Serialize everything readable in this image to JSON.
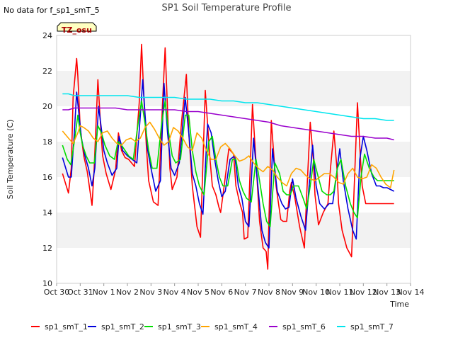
{
  "note": "No data for f_sp1_smT_5",
  "badge": "TZ_osu",
  "chart_data": {
    "type": "line",
    "title": "SP1 Soil Temperature Profile",
    "xlabel": "Time",
    "ylabel": "Soil Temperature (C)",
    "xlim": [
      0,
      15
    ],
    "ylim": [
      10,
      24
    ],
    "yticks": [
      10,
      12,
      14,
      16,
      18,
      20,
      22,
      24
    ],
    "xtick_values": [
      0,
      1,
      2,
      3,
      4,
      5,
      6,
      7,
      8,
      9,
      10,
      11,
      12,
      13,
      14,
      15
    ],
    "xtick_labels": [
      "Oct 30",
      "Oct 31",
      "Nov 1",
      "Nov 2",
      "Nov 3",
      "Nov 4",
      "Nov 5",
      "Nov 6",
      "Nov 7",
      "Nov 8",
      "Nov 9",
      "Nov 10",
      "Nov 11",
      "Nov 12",
      "Nov 13",
      "Nov 14"
    ],
    "grid": "alternating horizontal bands",
    "legend_position": "bottom",
    "series": [
      {
        "name": "sp1_smT_1",
        "color": "#ff0000",
        "x": [
          0.25,
          0.5,
          0.62,
          0.7,
          0.85,
          0.9,
          1.0,
          1.15,
          1.3,
          1.5,
          1.58,
          1.75,
          1.88,
          1.95,
          2.1,
          2.3,
          2.5,
          2.62,
          2.75,
          2.9,
          3.05,
          3.3,
          3.5,
          3.6,
          3.7,
          3.8,
          3.9,
          4.1,
          4.3,
          4.5,
          4.6,
          4.7,
          4.8,
          4.9,
          5.1,
          5.3,
          5.5,
          5.6,
          5.75,
          5.88,
          5.95,
          6.1,
          6.3,
          6.5,
          6.6,
          6.75,
          6.88,
          6.95,
          7.1,
          7.3,
          7.5,
          7.6,
          7.75,
          7.88,
          7.95,
          8.1,
          8.3,
          8.5,
          8.6,
          8.75,
          8.88,
          8.95,
          9.1,
          9.3,
          9.5,
          9.6,
          9.75,
          9.88,
          9.95,
          10.1,
          10.3,
          10.5,
          10.6,
          10.75,
          10.88,
          10.95,
          11.1,
          11.3,
          11.5,
          11.6,
          11.75,
          11.88,
          11.95,
          12.1,
          12.3,
          12.5,
          12.6,
          12.75,
          12.88,
          12.95,
          13.1,
          13.3,
          13.5,
          13.6,
          13.75,
          13.88,
          13.95,
          14.1,
          14.3
        ],
        "y": [
          16.2,
          15.1,
          16.5,
          20.5,
          22.7,
          21.7,
          18.8,
          17.2,
          16.3,
          14.4,
          16.2,
          21.5,
          18.5,
          17.2,
          16.2,
          15.3,
          16.4,
          18.5,
          17.5,
          17.1,
          17.0,
          16.6,
          20.2,
          23.5,
          20.5,
          17.8,
          15.8,
          14.6,
          14.4,
          20.5,
          23.3,
          19.8,
          16.5,
          15.3,
          16.0,
          19.2,
          21.8,
          18.5,
          15.5,
          14.0,
          13.2,
          12.6,
          20.9,
          17.0,
          15.5,
          15.0,
          14.3,
          14.0,
          15.5,
          17.6,
          17.3,
          15.5,
          14.6,
          14.0,
          12.5,
          12.6,
          20.1,
          15.8,
          13.5,
          12.0,
          11.8,
          10.8,
          19.2,
          15.5,
          13.6,
          13.5,
          13.5,
          15.2,
          15.7,
          14.8,
          13.2,
          12.0,
          15.0,
          19.1,
          17.0,
          15.0,
          13.3,
          14.0,
          14.5,
          16.4,
          18.6,
          16.5,
          14.5,
          13.0,
          12.0,
          11.5,
          15.0,
          20.2,
          17.0,
          15.5,
          14.5,
          14.5,
          14.5,
          14.5,
          14.5,
          14.5,
          14.5,
          14.5,
          14.5
        ]
      },
      {
        "name": "sp1_smT_2",
        "color": "#0000dd",
        "x": [
          0.25,
          0.5,
          0.62,
          0.75,
          0.85,
          0.95,
          1.05,
          1.2,
          1.35,
          1.5,
          1.62,
          1.78,
          1.9,
          2.0,
          2.15,
          2.35,
          2.55,
          2.65,
          2.8,
          3.0,
          3.2,
          3.4,
          3.55,
          3.65,
          3.75,
          3.85,
          4.0,
          4.2,
          4.4,
          4.55,
          4.7,
          4.85,
          5.0,
          5.2,
          5.45,
          5.6,
          5.75,
          5.9,
          6.05,
          6.2,
          6.4,
          6.55,
          6.7,
          6.85,
          7.0,
          7.15,
          7.35,
          7.55,
          7.7,
          7.85,
          8.0,
          8.15,
          8.35,
          8.55,
          8.7,
          8.85,
          9.0,
          9.15,
          9.35,
          9.55,
          9.7,
          9.85,
          10.0,
          10.15,
          10.35,
          10.55,
          10.7,
          10.85,
          11.0,
          11.15,
          11.35,
          11.55,
          11.7,
          11.85,
          12.0,
          12.15,
          12.35,
          12.55,
          12.7,
          12.85,
          13.0,
          13.15,
          13.35,
          13.55,
          13.7,
          13.85,
          14.0,
          14.3
        ],
        "y": [
          17.1,
          16.0,
          16.0,
          18.5,
          20.8,
          19.5,
          18.2,
          17.2,
          16.5,
          15.5,
          16.5,
          20.0,
          18.7,
          17.5,
          16.8,
          16.1,
          16.5,
          18.3,
          17.5,
          17.2,
          17.0,
          16.8,
          19.5,
          21.5,
          19.5,
          17.6,
          16.5,
          15.2,
          15.8,
          21.3,
          18.5,
          16.5,
          16.1,
          16.8,
          20.5,
          18.5,
          16.2,
          15.5,
          14.5,
          13.9,
          19.0,
          18.5,
          17.0,
          15.8,
          14.9,
          15.2,
          17.0,
          17.2,
          15.5,
          14.8,
          13.5,
          13.2,
          18.2,
          15.2,
          13.0,
          12.3,
          12.0,
          17.6,
          15.2,
          14.5,
          14.2,
          14.3,
          15.9,
          14.8,
          13.8,
          13.0,
          15.5,
          17.8,
          15.5,
          14.5,
          14.2,
          14.5,
          14.5,
          16.0,
          17.6,
          15.8,
          14.2,
          13.0,
          12.5,
          17.0,
          18.3,
          17.5,
          16.2,
          15.5,
          15.5,
          15.4,
          15.4,
          15.2
        ]
      },
      {
        "name": "sp1_smT_3",
        "color": "#00dd00",
        "x": [
          0.25,
          0.45,
          0.6,
          0.75,
          0.9,
          1.0,
          1.1,
          1.25,
          1.4,
          1.6,
          1.75,
          1.9,
          2.05,
          2.25,
          2.45,
          2.6,
          2.75,
          2.9,
          3.05,
          3.25,
          3.45,
          3.6,
          3.75,
          3.9,
          4.05,
          4.25,
          4.45,
          4.6,
          4.75,
          4.9,
          5.05,
          5.25,
          5.45,
          5.6,
          5.75,
          5.9,
          6.05,
          6.25,
          6.45,
          6.6,
          6.75,
          6.9,
          7.05,
          7.25,
          7.45,
          7.6,
          7.75,
          7.9,
          8.05,
          8.25,
          8.45,
          8.6,
          8.75,
          8.9,
          9.05,
          9.25,
          9.45,
          9.6,
          9.75,
          9.9,
          10.05,
          10.25,
          10.45,
          10.6,
          10.75,
          10.9,
          11.05,
          11.25,
          11.45,
          11.6,
          11.75,
          11.9,
          12.05,
          12.25,
          12.45,
          12.6,
          12.75,
          12.9,
          13.05,
          13.25,
          13.45,
          13.6,
          13.75,
          13.9,
          14.05,
          14.3
        ],
        "y": [
          17.8,
          17.0,
          16.7,
          18.0,
          19.5,
          18.5,
          17.8,
          17.2,
          16.8,
          16.8,
          18.9,
          18.5,
          17.8,
          17.2,
          17.0,
          18.0,
          17.8,
          17.5,
          17.2,
          17.0,
          19.0,
          20.3,
          19.0,
          17.5,
          16.5,
          16.5,
          19.0,
          20.3,
          18.5,
          17.2,
          16.8,
          17.0,
          19.5,
          19.5,
          17.5,
          16.3,
          15.5,
          15.0,
          18.0,
          18.3,
          17.0,
          16.0,
          15.5,
          15.5,
          17.0,
          17.0,
          15.8,
          15.2,
          14.8,
          14.6,
          17.0,
          15.8,
          14.5,
          13.5,
          13.2,
          16.8,
          16.2,
          15.2,
          15.0,
          15.0,
          15.5,
          15.5,
          14.8,
          14.2,
          15.5,
          17.0,
          16.2,
          15.2,
          15.0,
          15.0,
          15.2,
          16.5,
          17.0,
          15.5,
          14.5,
          14.0,
          13.7,
          16.0,
          17.3,
          16.5,
          16.0,
          15.8,
          15.8,
          15.8,
          15.8,
          15.8
        ]
      },
      {
        "name": "sp1_smT_4",
        "color": "#ffa500",
        "x": [
          0.25,
          0.5,
          0.7,
          0.9,
          1.0,
          1.15,
          1.35,
          1.55,
          1.75,
          1.95,
          2.15,
          2.35,
          2.55,
          2.75,
          2.95,
          3.15,
          3.35,
          3.55,
          3.75,
          3.95,
          4.15,
          4.35,
          4.55,
          4.75,
          4.95,
          5.15,
          5.35,
          5.55,
          5.75,
          5.95,
          6.15,
          6.35,
          6.55,
          6.75,
          6.95,
          7.15,
          7.35,
          7.55,
          7.75,
          7.95,
          8.15,
          8.35,
          8.55,
          8.75,
          8.95,
          9.15,
          9.35,
          9.55,
          9.75,
          9.95,
          10.15,
          10.35,
          10.55,
          10.75,
          10.95,
          11.15,
          11.35,
          11.55,
          11.75,
          11.95,
          12.15,
          12.35,
          12.55,
          12.75,
          12.95,
          13.15,
          13.35,
          13.55,
          13.75,
          13.95,
          14.15,
          14.3
        ],
        "y": [
          18.6,
          18.2,
          17.9,
          18.5,
          18.9,
          18.8,
          18.6,
          18.2,
          18.0,
          18.5,
          18.6,
          18.2,
          17.9,
          17.8,
          18.1,
          18.2,
          18.0,
          18.2,
          18.8,
          19.1,
          18.7,
          18.2,
          17.8,
          18.0,
          18.8,
          18.6,
          18.2,
          17.7,
          17.5,
          18.5,
          18.2,
          17.5,
          17.0,
          17.0,
          17.7,
          17.9,
          17.6,
          17.2,
          16.9,
          17.0,
          17.2,
          16.8,
          16.5,
          16.3,
          16.6,
          16.4,
          16.0,
          15.7,
          15.5,
          16.2,
          16.5,
          16.4,
          16.1,
          15.9,
          15.8,
          16.0,
          16.2,
          16.2,
          16.0,
          15.7,
          15.6,
          16.2,
          16.5,
          16.0,
          15.9,
          16.0,
          16.7,
          16.5,
          16.0,
          15.6,
          15.4,
          16.4
        ]
      },
      {
        "name": "sp1_smT_6",
        "color": "#9900cc",
        "x": [
          0.25,
          0.5,
          0.75,
          1.0,
          1.5,
          2.0,
          2.5,
          3.0,
          3.5,
          4.0,
          4.5,
          5.0,
          5.5,
          6.0,
          6.5,
          7.0,
          7.5,
          8.0,
          8.5,
          9.0,
          9.5,
          10.0,
          10.5,
          11.0,
          11.5,
          12.0,
          12.5,
          13.0,
          13.5,
          14.0,
          14.3
        ],
        "y": [
          19.8,
          19.8,
          19.9,
          19.9,
          19.9,
          19.9,
          19.9,
          19.8,
          19.8,
          19.8,
          19.8,
          19.8,
          19.7,
          19.7,
          19.6,
          19.5,
          19.4,
          19.3,
          19.2,
          19.1,
          18.9,
          18.8,
          18.7,
          18.6,
          18.5,
          18.4,
          18.3,
          18.3,
          18.2,
          18.2,
          18.1
        ]
      },
      {
        "name": "sp1_smT_7",
        "color": "#00e5ee",
        "x": [
          0.25,
          0.5,
          0.75,
          1.0,
          1.5,
          2.0,
          2.5,
          3.0,
          3.5,
          4.0,
          4.5,
          5.0,
          5.5,
          6.0,
          6.5,
          7.0,
          7.5,
          8.0,
          8.5,
          9.0,
          9.5,
          10.0,
          10.5,
          11.0,
          11.5,
          12.0,
          12.5,
          13.0,
          13.5,
          14.0,
          14.3
        ],
        "y": [
          20.7,
          20.7,
          20.6,
          20.6,
          20.6,
          20.6,
          20.6,
          20.6,
          20.5,
          20.5,
          20.5,
          20.5,
          20.4,
          20.4,
          20.4,
          20.3,
          20.3,
          20.2,
          20.2,
          20.1,
          20.0,
          19.9,
          19.8,
          19.7,
          19.6,
          19.5,
          19.4,
          19.3,
          19.3,
          19.2,
          19.2
        ]
      }
    ]
  }
}
